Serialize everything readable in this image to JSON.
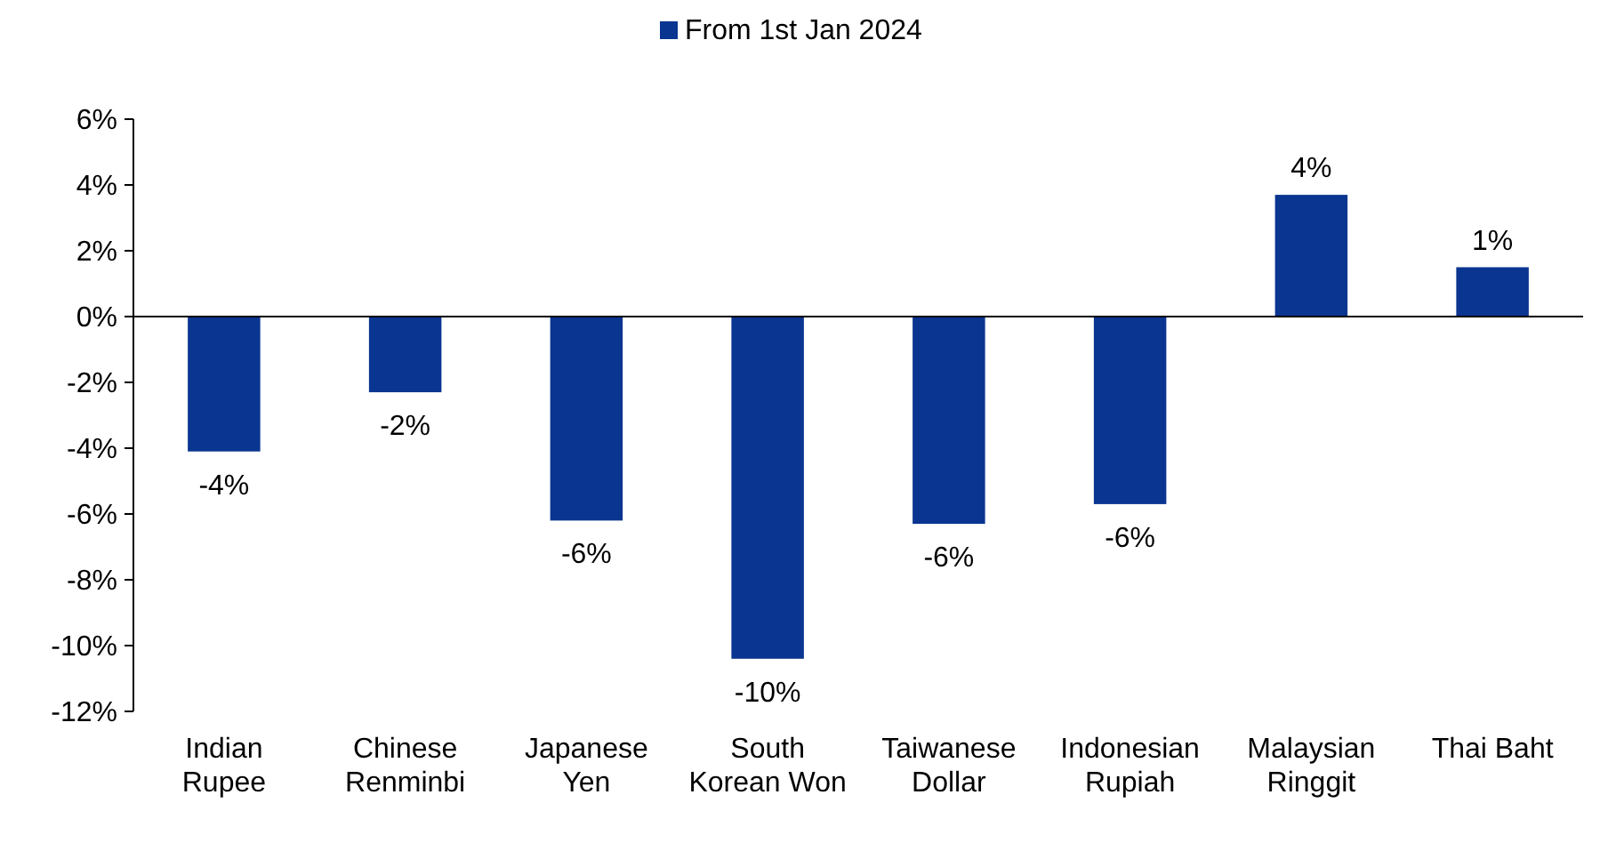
{
  "chart_data": {
    "type": "bar",
    "categories": [
      "Indian Rupee",
      "Chinese Renminbi",
      "Japanese Yen",
      "South Korean Won",
      "Taiwanese Dollar",
      "Indonesian Rupiah",
      "Malaysian Ringgit",
      "Thai Baht"
    ],
    "series": [
      {
        "name": "From 1st Jan 2024",
        "color": "#0a3590",
        "values": [
          -4.1,
          -2.3,
          -6.2,
          -10.4,
          -6.3,
          -5.7,
          3.7,
          1.5
        ],
        "value_labels": [
          "-4%",
          "-2%",
          "-6%",
          "-10%",
          "-6%",
          "-6%",
          "4%",
          "1%"
        ]
      }
    ],
    "ylim": [
      -12,
      6
    ],
    "yticks": [
      {
        "value": -12,
        "label": "-12%"
      },
      {
        "value": -10,
        "label": "-10%"
      },
      {
        "value": -8,
        "label": "-8%"
      },
      {
        "value": -6,
        "label": "-6%"
      },
      {
        "value": -4,
        "label": "-4%"
      },
      {
        "value": -2,
        "label": "-2%"
      },
      {
        "value": 0,
        "label": "0%"
      },
      {
        "value": 2,
        "label": "2%"
      },
      {
        "value": 4,
        "label": "4%"
      },
      {
        "value": 6,
        "label": "6%"
      }
    ],
    "legend": "top"
  }
}
